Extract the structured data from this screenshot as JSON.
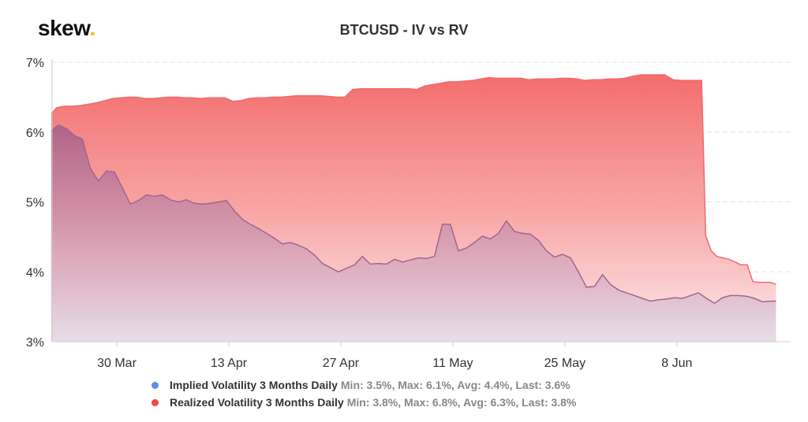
{
  "brand": {
    "name": "skew",
    "dot": "."
  },
  "chart_data": {
    "type": "area",
    "title": "BTCUSD - IV vs RV",
    "ylim": [
      3,
      7
    ],
    "yticks": [
      "3%",
      "4%",
      "5%",
      "6%",
      "7%"
    ],
    "ytick_values": [
      3,
      4,
      5,
      6,
      7
    ],
    "xticks": [
      "30 Mar",
      "13 Apr",
      "27 Apr",
      "11 May",
      "25 May",
      "8 Jun"
    ],
    "xtick_days": [
      0,
      14,
      28,
      42,
      56,
      70
    ],
    "x_unit_note": "",
    "grid": true,
    "legend_position": "bottom",
    "series": [
      {
        "name": "Realized Volatility 3 Months Daily",
        "stats": "Min: 3.8%, Max: 6.8%, Avg: 6.3%, Last: 3.8%",
        "color": "#f04848",
        "points": [
          [
            -8.2,
            6.26
          ],
          [
            -7.5,
            6.35
          ],
          [
            -6.5,
            6.37
          ],
          [
            -5.5,
            6.37
          ],
          [
            -4.5,
            6.38
          ],
          [
            -3.5,
            6.4
          ],
          [
            -2.5,
            6.42
          ],
          [
            -1.5,
            6.45
          ],
          [
            -0.5,
            6.48
          ],
          [
            0.5,
            6.49
          ],
          [
            1.5,
            6.5
          ],
          [
            2.5,
            6.5
          ],
          [
            3.5,
            6.48
          ],
          [
            4.5,
            6.48
          ],
          [
            5.5,
            6.49
          ],
          [
            6.5,
            6.5
          ],
          [
            7.5,
            6.5
          ],
          [
            8.5,
            6.49
          ],
          [
            9.5,
            6.49
          ],
          [
            10.5,
            6.48
          ],
          [
            11.5,
            6.49
          ],
          [
            12.5,
            6.49
          ],
          [
            13.5,
            6.49
          ],
          [
            14.5,
            6.44
          ],
          [
            15.5,
            6.45
          ],
          [
            16.5,
            6.48
          ],
          [
            17.5,
            6.49
          ],
          [
            18.5,
            6.49
          ],
          [
            19.5,
            6.5
          ],
          [
            20.5,
            6.5
          ],
          [
            21.5,
            6.51
          ],
          [
            22.5,
            6.52
          ],
          [
            23.5,
            6.52
          ],
          [
            24.5,
            6.52
          ],
          [
            25.5,
            6.52
          ],
          [
            26.5,
            6.51
          ],
          [
            27.5,
            6.5
          ],
          [
            28.5,
            6.5
          ],
          [
            29.5,
            6.61
          ],
          [
            30.5,
            6.62
          ],
          [
            31.5,
            6.62
          ],
          [
            32.5,
            6.62
          ],
          [
            33.5,
            6.62
          ],
          [
            34.5,
            6.62
          ],
          [
            35.5,
            6.62
          ],
          [
            36.5,
            6.62
          ],
          [
            37.5,
            6.61
          ],
          [
            38.5,
            6.66
          ],
          [
            39.5,
            6.68
          ],
          [
            40.5,
            6.7
          ],
          [
            41.5,
            6.72
          ],
          [
            42.5,
            6.72
          ],
          [
            43.5,
            6.73
          ],
          [
            44.5,
            6.74
          ],
          [
            45.5,
            6.76
          ],
          [
            46.5,
            6.78
          ],
          [
            47.5,
            6.77
          ],
          [
            48.5,
            6.77
          ],
          [
            49.5,
            6.77
          ],
          [
            50.5,
            6.77
          ],
          [
            51.5,
            6.75
          ],
          [
            52.5,
            6.76
          ],
          [
            53.5,
            6.76
          ],
          [
            54.5,
            6.76
          ],
          [
            55.5,
            6.77
          ],
          [
            56.5,
            6.77
          ],
          [
            57.5,
            6.76
          ],
          [
            58.5,
            6.74
          ],
          [
            59.5,
            6.75
          ],
          [
            60.5,
            6.75
          ],
          [
            61.5,
            6.76
          ],
          [
            62.5,
            6.76
          ],
          [
            63.5,
            6.77
          ],
          [
            64.5,
            6.8
          ],
          [
            65.5,
            6.82
          ],
          [
            66.5,
            6.82
          ],
          [
            67.5,
            6.82
          ],
          [
            68.5,
            6.82
          ],
          [
            69.5,
            6.75
          ],
          [
            70.5,
            6.74
          ],
          [
            71.5,
            6.74
          ],
          [
            72.5,
            6.74
          ],
          [
            73.1,
            6.74
          ],
          [
            73.6,
            4.52
          ],
          [
            74.3,
            4.3
          ],
          [
            75.0,
            4.22
          ],
          [
            75.7,
            4.2
          ],
          [
            76.5,
            4.18
          ],
          [
            77.3,
            4.14
          ],
          [
            78.0,
            4.1
          ],
          [
            78.8,
            4.1
          ],
          [
            79.5,
            3.86
          ],
          [
            80.3,
            3.85
          ],
          [
            81.0,
            3.85
          ],
          [
            81.7,
            3.85
          ],
          [
            82.4,
            3.82
          ]
        ]
      },
      {
        "name": "Implied Volatility 3 Months Daily",
        "stats": "Min: 3.5%, Max: 6.1%, Avg: 4.4%, Last: 3.6%",
        "color": "#5b8fe8",
        "points": [
          [
            -8.2,
            6.02
          ],
          [
            -7.3,
            6.1
          ],
          [
            -6.3,
            6.05
          ],
          [
            -5.3,
            5.95
          ],
          [
            -4.3,
            5.9
          ],
          [
            -3.3,
            5.48
          ],
          [
            -2.3,
            5.3
          ],
          [
            -1.3,
            5.44
          ],
          [
            -0.3,
            5.43
          ],
          [
            0.7,
            5.2
          ],
          [
            1.7,
            4.97
          ],
          [
            2.7,
            5.02
          ],
          [
            3.7,
            5.1
          ],
          [
            4.7,
            5.08
          ],
          [
            5.7,
            5.1
          ],
          [
            6.7,
            5.03
          ],
          [
            7.7,
            5.0
          ],
          [
            8.7,
            5.03
          ],
          [
            9.7,
            4.98
          ],
          [
            10.7,
            4.97
          ],
          [
            11.7,
            4.98
          ],
          [
            12.7,
            5.0
          ],
          [
            13.7,
            5.02
          ],
          [
            14.7,
            4.87
          ],
          [
            15.7,
            4.75
          ],
          [
            16.7,
            4.68
          ],
          [
            17.7,
            4.62
          ],
          [
            18.7,
            4.55
          ],
          [
            19.7,
            4.48
          ],
          [
            20.7,
            4.4
          ],
          [
            21.7,
            4.42
          ],
          [
            22.7,
            4.38
          ],
          [
            23.7,
            4.33
          ],
          [
            24.7,
            4.24
          ],
          [
            25.7,
            4.12
          ],
          [
            26.7,
            4.06
          ],
          [
            27.7,
            4.0
          ],
          [
            28.7,
            4.05
          ],
          [
            29.7,
            4.1
          ],
          [
            30.7,
            4.22
          ],
          [
            31.7,
            4.11
          ],
          [
            32.7,
            4.12
          ],
          [
            33.7,
            4.11
          ],
          [
            34.7,
            4.18
          ],
          [
            35.7,
            4.14
          ],
          [
            36.7,
            4.17
          ],
          [
            37.7,
            4.2
          ],
          [
            38.7,
            4.19
          ],
          [
            39.7,
            4.22
          ],
          [
            40.7,
            4.68
          ],
          [
            41.7,
            4.68
          ],
          [
            42.7,
            4.3
          ],
          [
            43.7,
            4.34
          ],
          [
            44.7,
            4.42
          ],
          [
            45.7,
            4.51
          ],
          [
            46.7,
            4.47
          ],
          [
            47.7,
            4.55
          ],
          [
            48.7,
            4.73
          ],
          [
            49.7,
            4.58
          ],
          [
            50.7,
            4.55
          ],
          [
            51.7,
            4.54
          ],
          [
            52.7,
            4.45
          ],
          [
            53.7,
            4.3
          ],
          [
            54.7,
            4.21
          ],
          [
            55.7,
            4.25
          ],
          [
            56.7,
            4.2
          ],
          [
            57.7,
            4.0
          ],
          [
            58.7,
            3.78
          ],
          [
            59.7,
            3.79
          ],
          [
            60.7,
            3.96
          ],
          [
            61.7,
            3.82
          ],
          [
            62.7,
            3.74
          ],
          [
            63.7,
            3.7
          ],
          [
            64.7,
            3.66
          ],
          [
            65.7,
            3.62
          ],
          [
            66.7,
            3.58
          ],
          [
            67.7,
            3.6
          ],
          [
            68.7,
            3.61
          ],
          [
            69.7,
            3.63
          ],
          [
            70.7,
            3.62
          ],
          [
            71.7,
            3.66
          ],
          [
            72.7,
            3.7
          ],
          [
            73.7,
            3.62
          ],
          [
            74.7,
            3.55
          ],
          [
            75.7,
            3.63
          ],
          [
            76.7,
            3.66
          ],
          [
            77.7,
            3.66
          ],
          [
            78.7,
            3.65
          ],
          [
            79.7,
            3.62
          ],
          [
            80.7,
            3.57
          ],
          [
            81.7,
            3.58
          ],
          [
            82.4,
            3.58
          ]
        ]
      }
    ]
  },
  "legend": [
    {
      "name": "Implied Volatility 3 Months Daily",
      "stats": "Min: 3.5%, Max: 6.1%, Avg: 4.4%, Last: 3.6%",
      "color": "#5b8fe8"
    },
    {
      "name": "Realized Volatility 3 Months Daily",
      "stats": "Min: 3.8%, Max: 6.8%, Avg: 6.3%, Last: 3.8%",
      "color": "#f04848"
    }
  ]
}
